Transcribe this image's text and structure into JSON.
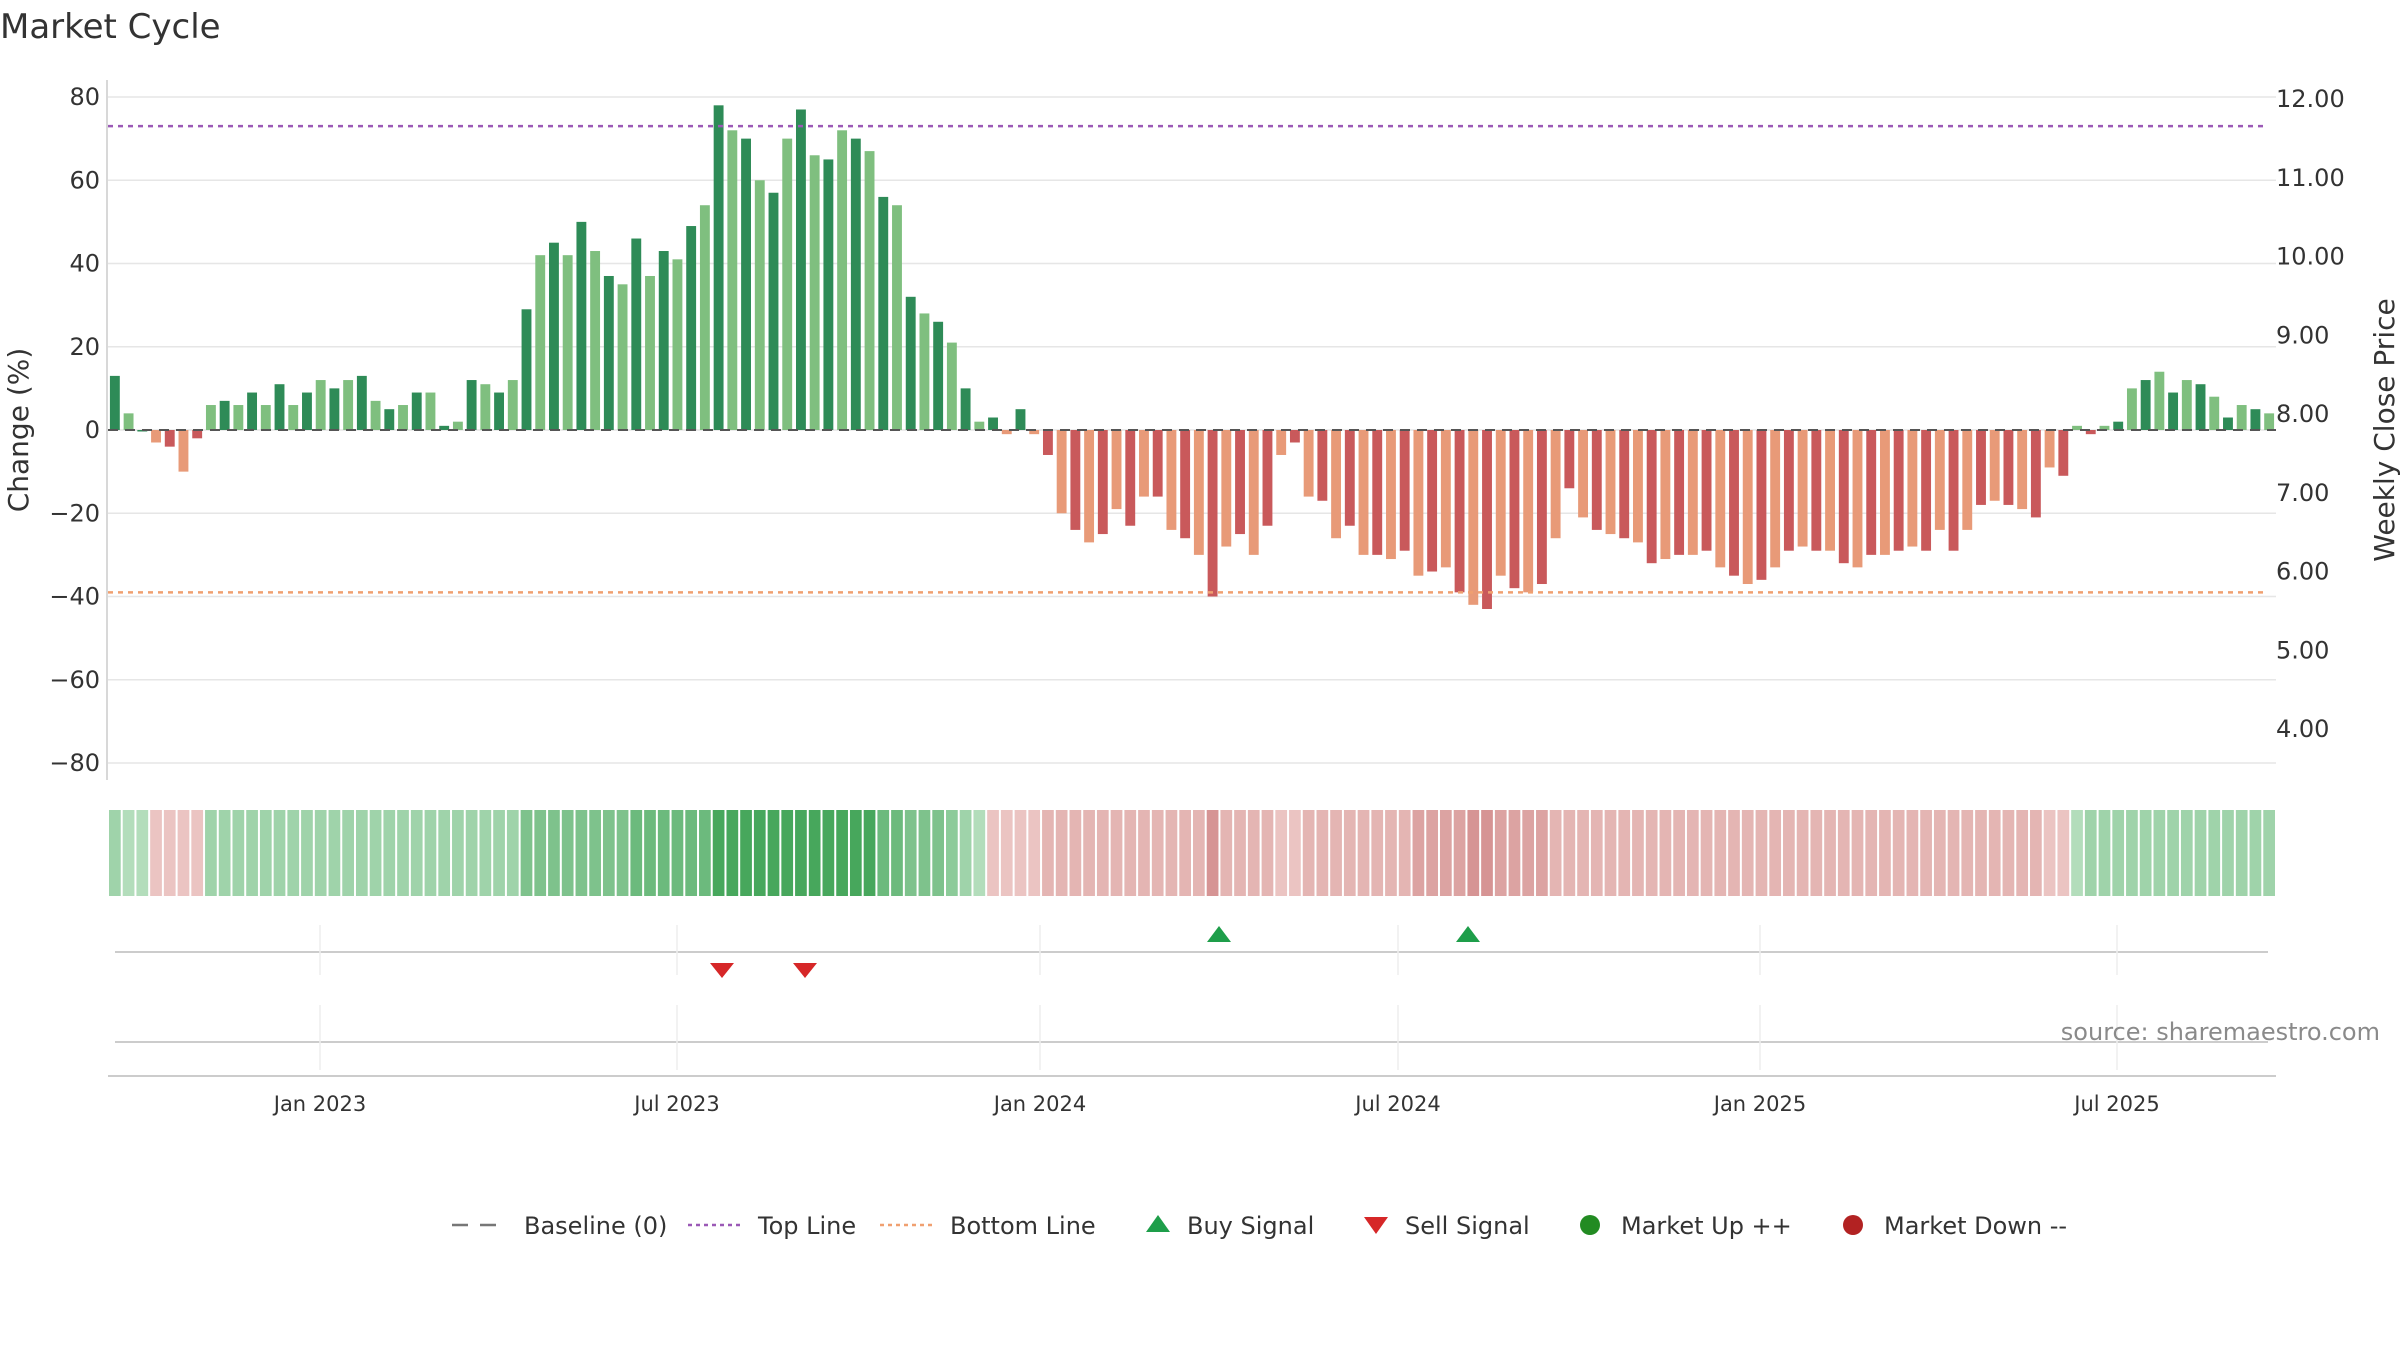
{
  "chart_data": {
    "type": "bar",
    "title": "Market Cycle",
    "ylabel_left": "Change (%)",
    "ylabel_right": "Weekly Close Price",
    "ylim_left": [
      -80,
      80
    ],
    "yticks_left": [
      "80",
      "60",
      "40",
      "20",
      "0",
      "−20",
      "−40",
      "−60",
      "−80"
    ],
    "yticks_right": [
      "12.00",
      "11.00",
      "10.00",
      "9.00",
      "8.00",
      "7.00",
      "6.00",
      "5.00",
      "4.00"
    ],
    "xticks": [
      "Jan 2023",
      "Jul 2023",
      "Jan 2024",
      "Jul 2024",
      "Jan 2025",
      "Jul 2025"
    ],
    "top_line": 73,
    "bottom_line": -39,
    "grid": true,
    "values": [
      13,
      4,
      0,
      -3,
      -4,
      -10,
      -2,
      6,
      7,
      6,
      9,
      6,
      11,
      6,
      9,
      12,
      10,
      12,
      13,
      7,
      5,
      6,
      9,
      9,
      1,
      2,
      12,
      11,
      9,
      12,
      29,
      42,
      45,
      42,
      50,
      43,
      37,
      35,
      46,
      37,
      43,
      41,
      49,
      54,
      78,
      72,
      70,
      60,
      57,
      70,
      77,
      66,
      65,
      72,
      70,
      67,
      56,
      54,
      32,
      28,
      26,
      21,
      10,
      2,
      3,
      -1,
      5,
      -1,
      -6,
      -20,
      -24,
      -27,
      -25,
      -19,
      -23,
      -16,
      -16,
      -24,
      -26,
      -30,
      -40,
      -28,
      -25,
      -30,
      -23,
      -6,
      -3,
      -16,
      -17,
      -26,
      -23,
      -30,
      -30,
      -31,
      -29,
      -35,
      -34,
      -33,
      -39,
      -42,
      -43,
      -35,
      -38,
      -39,
      -37,
      -26,
      -14,
      -21,
      -24,
      -25,
      -26,
      -27,
      -32,
      -31,
      -30,
      -30,
      -29,
      -33,
      -35,
      -37,
      -36,
      -33,
      -29,
      -28,
      -29,
      -29,
      -32,
      -33,
      -30,
      -30,
      -29,
      -28,
      -29,
      -24,
      -29,
      -24,
      -18,
      -17,
      -18,
      -19,
      -21,
      -9,
      -11,
      1,
      -1,
      1,
      2,
      10,
      12,
      14,
      9,
      12,
      11,
      8,
      3,
      6,
      5,
      4
    ],
    "heat_strip": [
      3,
      2,
      2,
      -2,
      -2,
      -2,
      -2,
      3,
      3,
      3,
      3,
      3,
      3,
      3,
      3,
      3,
      3,
      3,
      3,
      3,
      3,
      3,
      3,
      3,
      3,
      3,
      3,
      3,
      3,
      3,
      5,
      5,
      5,
      5,
      5,
      5,
      5,
      5,
      6,
      6,
      6,
      6,
      6,
      6,
      9,
      9,
      9,
      9,
      9,
      9,
      9,
      9,
      9,
      9,
      9,
      9,
      6,
      6,
      5,
      5,
      5,
      4,
      3,
      2,
      -2,
      -2,
      -2,
      -2,
      -3,
      -3,
      -3,
      -3,
      -3,
      -3,
      -3,
      -3,
      -3,
      -3,
      -3,
      -3,
      -5,
      -3,
      -3,
      -3,
      -3,
      -2,
      -2,
      -3,
      -3,
      -3,
      -3,
      -3,
      -3,
      -3,
      -3,
      -4,
      -4,
      -4,
      -4,
      -5,
      -5,
      -4,
      -4,
      -4,
      -4,
      -3,
      -3,
      -3,
      -3,
      -3,
      -3,
      -3,
      -3,
      -3,
      -3,
      -3,
      -3,
      -3,
      -3,
      -3,
      -3,
      -3,
      -3,
      -3,
      -3,
      -3,
      -3,
      -3,
      -3,
      -3,
      -3,
      -3,
      -3,
      -3,
      -3,
      -3,
      -3,
      -3,
      -3,
      -3,
      -3,
      -2,
      -2,
      2,
      3,
      3,
      3,
      3,
      3,
      3,
      3,
      3,
      3,
      3,
      3,
      3,
      3,
      3
    ],
    "buy_signals": [
      "Apr 2024",
      "Aug 2024"
    ],
    "sell_signals": [
      "Aug 2023",
      "Sep 2023"
    ],
    "series": [
      {
        "name": "Baseline (0)",
        "color": "#777777",
        "style": "dashed"
      },
      {
        "name": "Top Line",
        "color": "#9b59b6",
        "style": "dotted"
      },
      {
        "name": "Bottom Line",
        "color": "#f0a070",
        "style": "dotted"
      },
      {
        "name": "Buy Signal",
        "color": "#1e9e4a",
        "marker": "triangle-up"
      },
      {
        "name": "Sell Signal",
        "color": "#d62728",
        "marker": "triangle-down"
      },
      {
        "name": "Market Up ++",
        "color": "#228b22",
        "marker": "circle"
      },
      {
        "name": "Market Down --",
        "color": "#b22222",
        "marker": "circle"
      }
    ],
    "colors": {
      "up_strong": "#2e8b57",
      "up_light": "#7fbf7f",
      "down_strong": "#c9595b",
      "down_light": "#e89a78"
    }
  },
  "source": "source: sharemaestro.com"
}
